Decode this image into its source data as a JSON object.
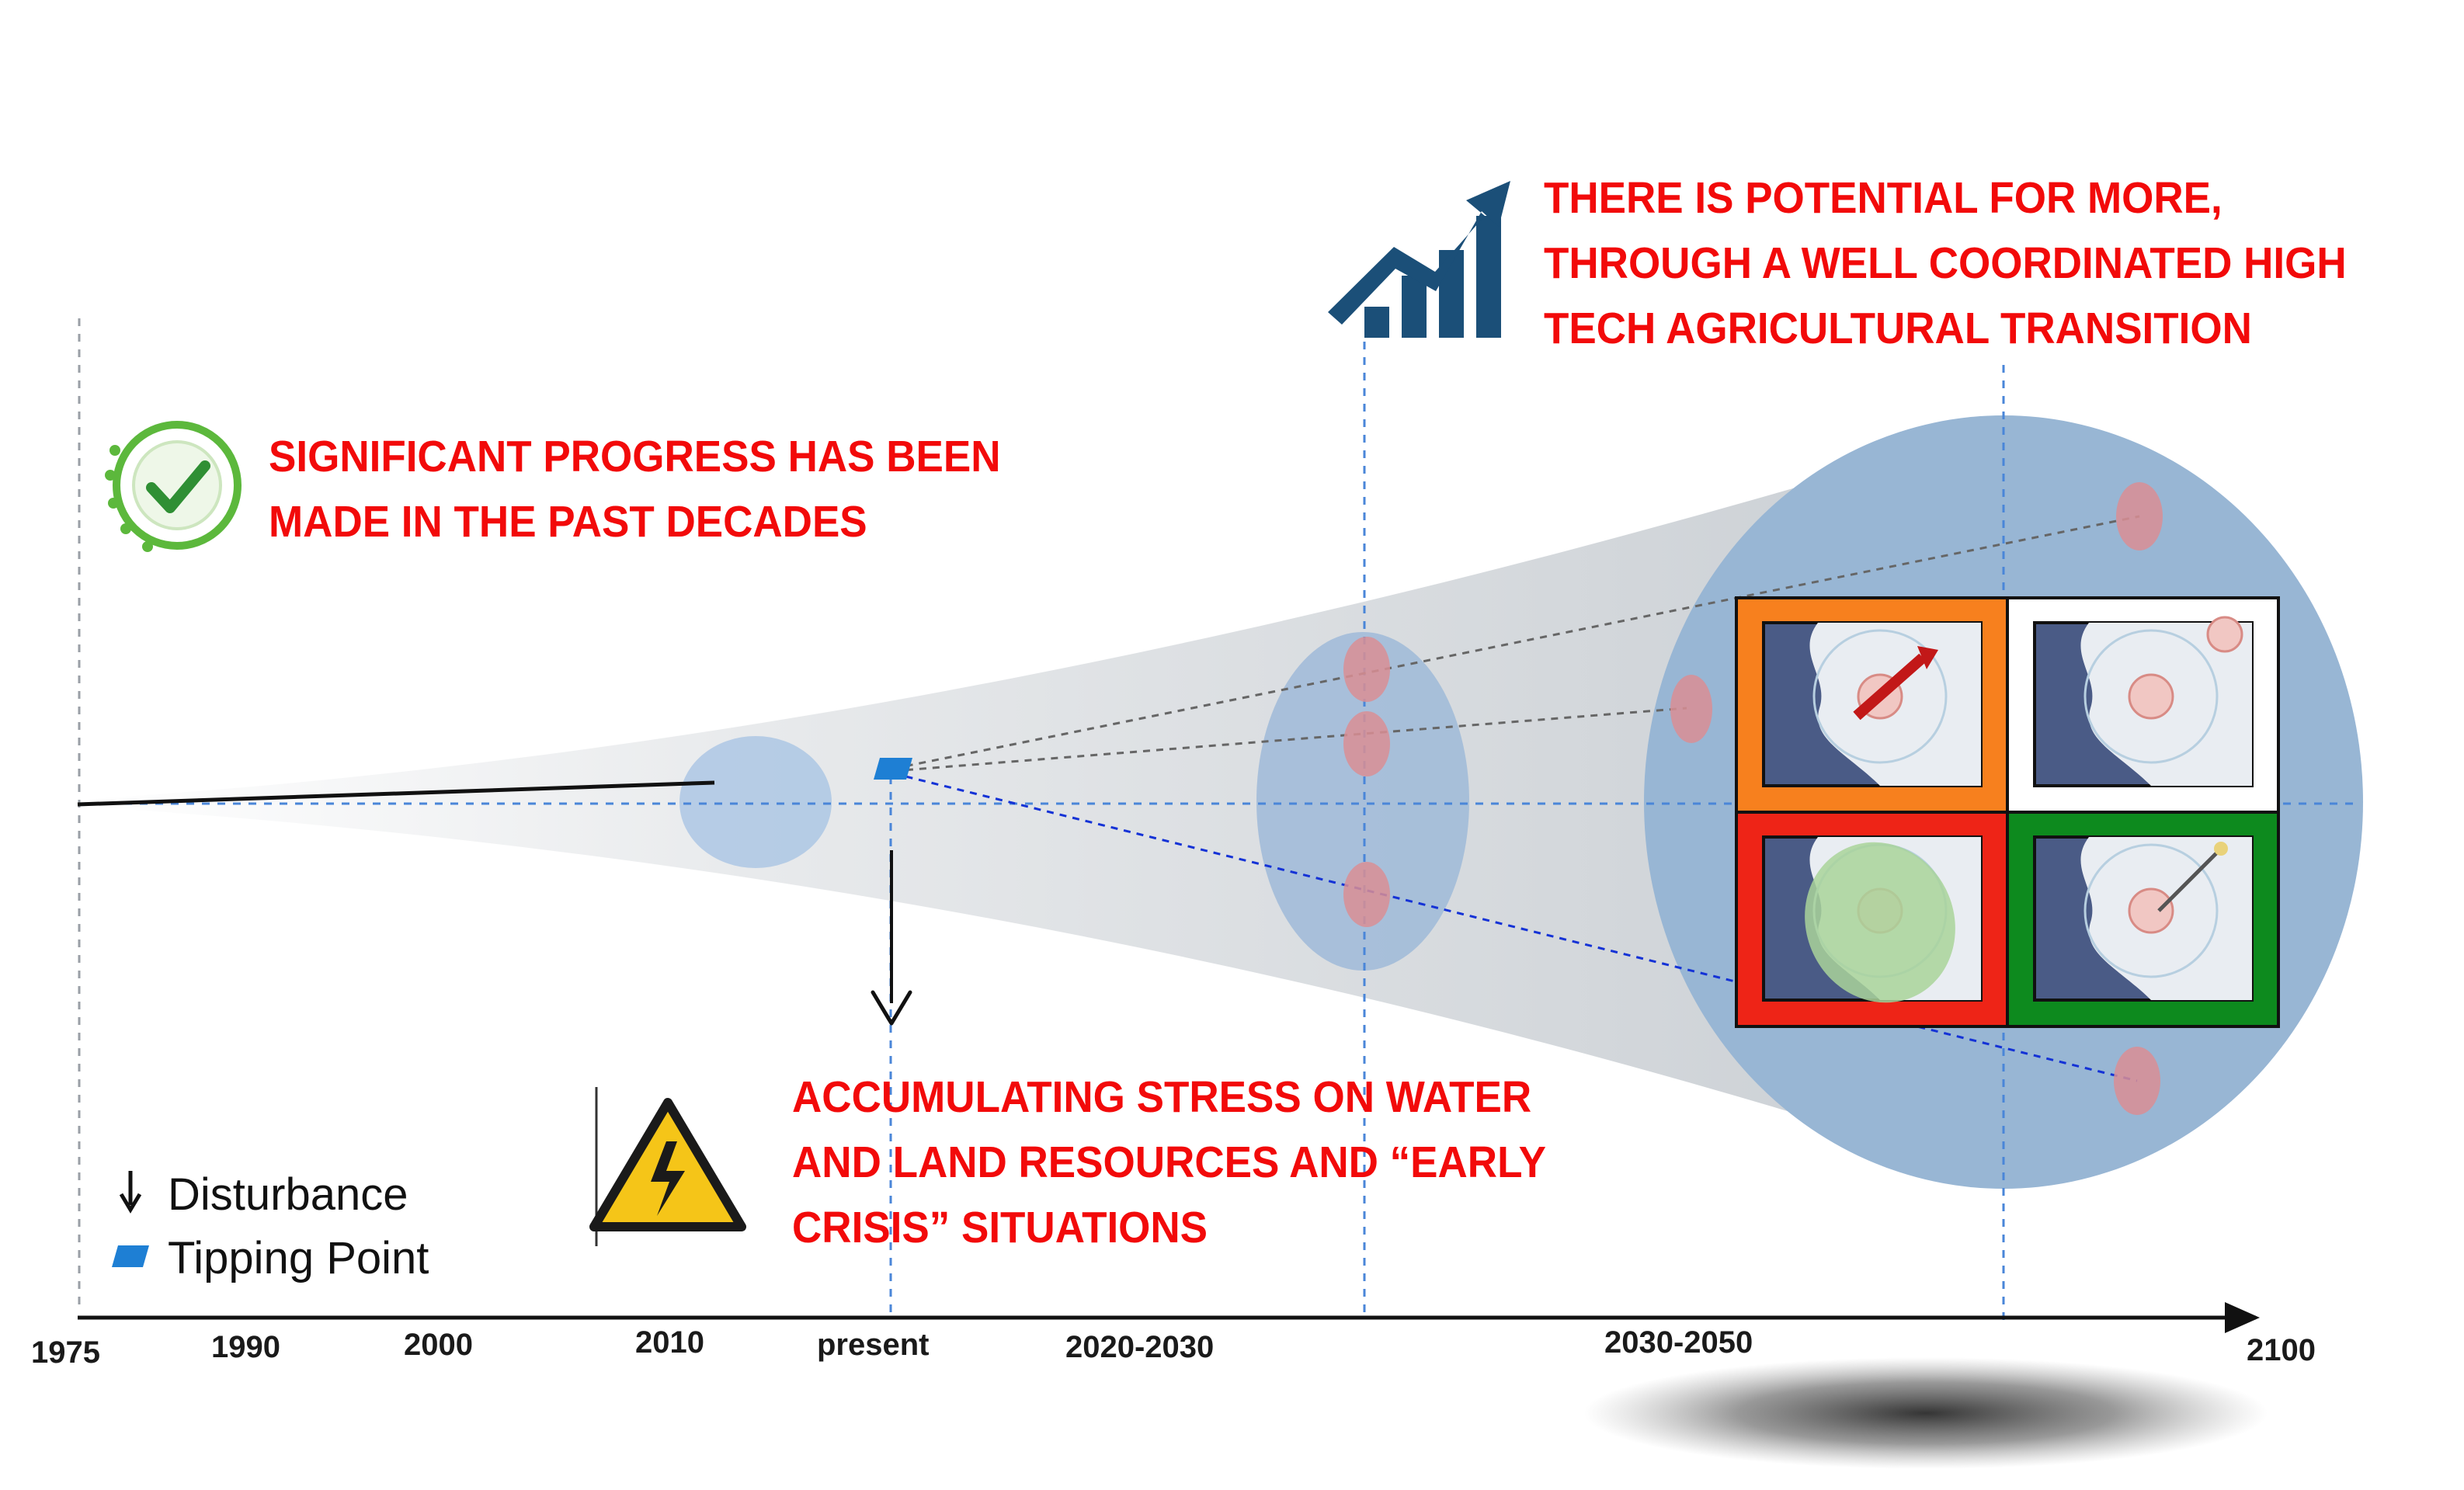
{
  "notes": {
    "progress": {
      "line1": "SIGNIFICANT PROGRESS HAS BEEN",
      "line2": "MADE IN THE PAST DECADES"
    },
    "potential": {
      "line1": "THERE IS POTENTIAL FOR MORE,",
      "line2": "THROUGH A WELL COORDINATED HIGH",
      "line3": "TECH AGRICULTURAL TRANSITION"
    },
    "stress": {
      "line1": "ACCUMULATING STRESS ON WATER",
      "line2": "AND LAND RESOURCES AND “EARLY",
      "line3": "CRISIS” SITUATIONS"
    }
  },
  "legend": {
    "disturbance": "Disturbance",
    "tipping_point": "Tipping Point"
  },
  "timeline": {
    "labels": [
      "1975",
      "1990",
      "2000",
      "2010",
      "present",
      "2020-2030",
      "2030-2050",
      "2100"
    ]
  },
  "icons": {
    "progress": "circular-check-icon",
    "potential": "rising-chart-arrow-icon",
    "stress": "high-voltage-warning-icon"
  },
  "colors": {
    "headline": "#f20a0a",
    "scenario_orange": "#f7801e",
    "scenario_white": "#ffffff",
    "scenario_red": "#ee2417",
    "scenario_green": "#0d8a1e",
    "tipping_point": "#1e7fd4",
    "icon_navy": "#1b4f78",
    "check_green": "#5cb83c"
  }
}
